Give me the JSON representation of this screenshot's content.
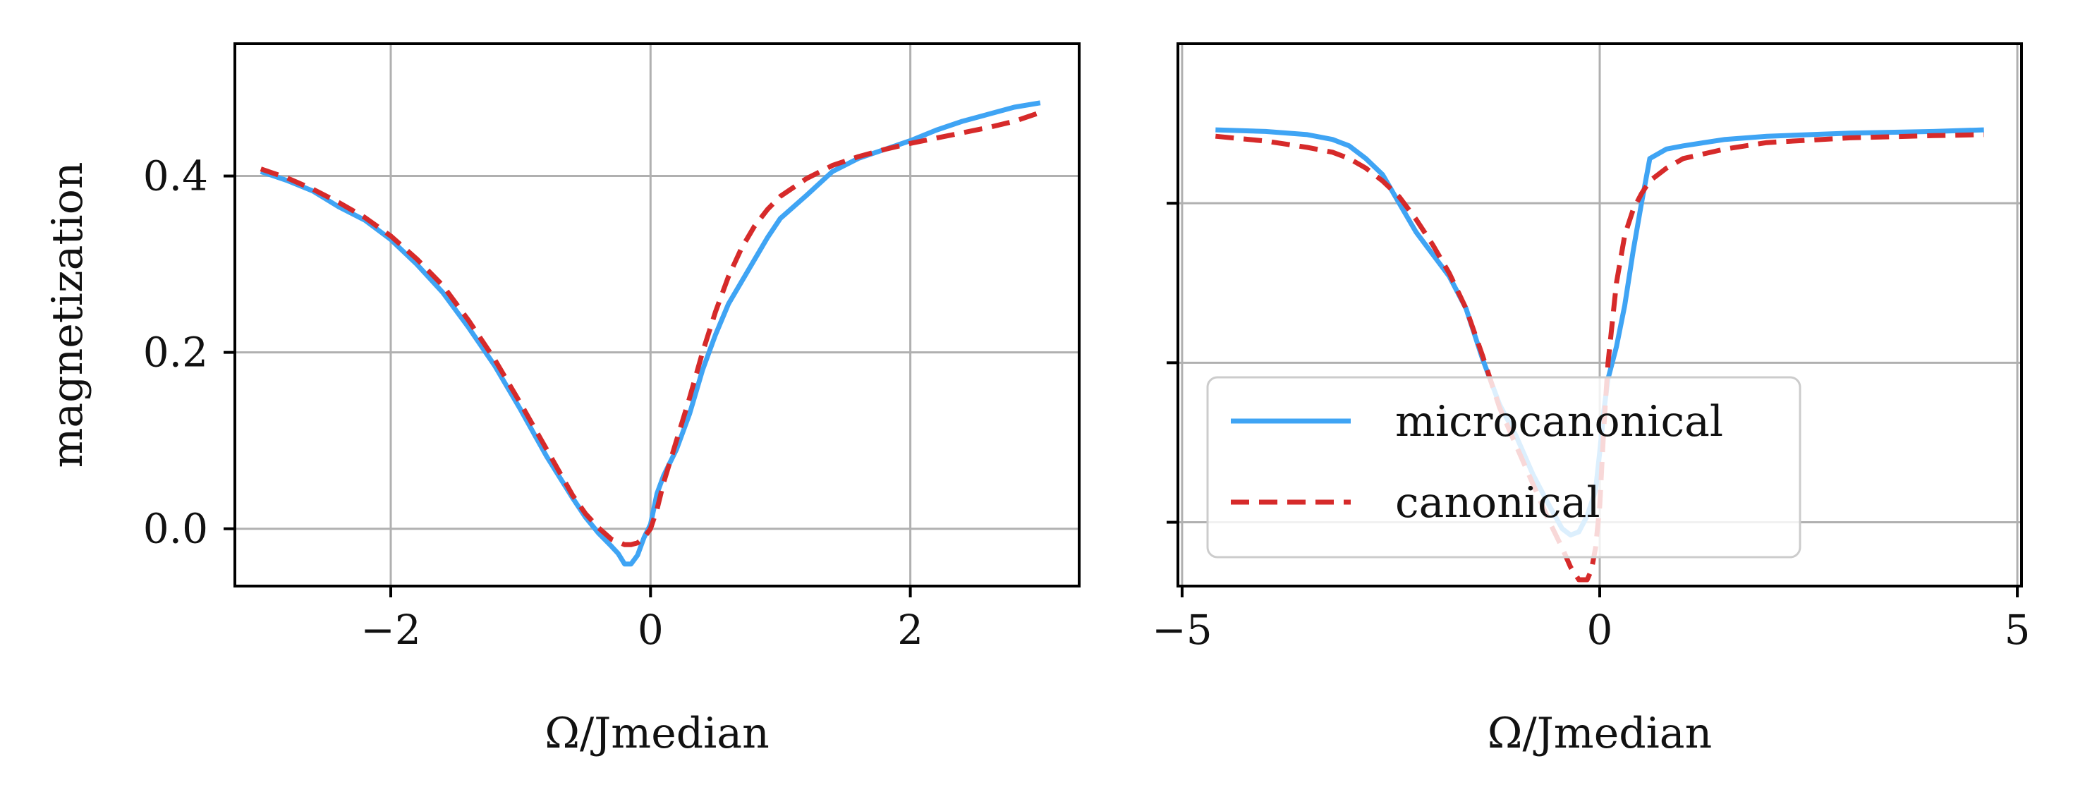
{
  "colors": {
    "micro": "#3fa4f4",
    "canon": "#d62a2a",
    "grid": "#b0b0b0",
    "axis": "#000000"
  },
  "chart_data": [
    {
      "type": "line",
      "id": "left",
      "title": "",
      "xlabel": "Ω/Jmedian",
      "ylabel": "magnetization",
      "xlim": [
        -3.2,
        3.3
      ],
      "ylim": [
        -0.065,
        0.55
      ],
      "xticks": [
        -2,
        0,
        2
      ],
      "xtick_labels": [
        "−2",
        "0",
        "2"
      ],
      "yticks": [
        0.0,
        0.2,
        0.4
      ],
      "ytick_labels": [
        "0.0",
        "0.2",
        "0.4"
      ],
      "grid": true,
      "series": [
        {
          "name": "microcanonical",
          "style": "solid",
          "x": [
            -3.0,
            -2.8,
            -2.6,
            -2.4,
            -2.2,
            -2.0,
            -1.8,
            -1.6,
            -1.4,
            -1.2,
            -1.0,
            -0.8,
            -0.6,
            -0.5,
            -0.4,
            -0.3,
            -0.25,
            -0.2,
            -0.15,
            -0.1,
            -0.05,
            0.0,
            0.05,
            0.1,
            0.2,
            0.3,
            0.4,
            0.5,
            0.6,
            0.7,
            0.8,
            0.9,
            1.0,
            1.2,
            1.4,
            1.6,
            1.8,
            2.0,
            2.2,
            2.4,
            2.6,
            2.8,
            3.0
          ],
          "y": [
            0.405,
            0.395,
            0.383,
            0.365,
            0.35,
            0.328,
            0.3,
            0.268,
            0.228,
            0.185,
            0.135,
            0.082,
            0.035,
            0.013,
            -0.005,
            -0.02,
            -0.028,
            -0.04,
            -0.04,
            -0.03,
            -0.01,
            0.005,
            0.04,
            0.06,
            0.09,
            0.13,
            0.18,
            0.22,
            0.255,
            0.28,
            0.305,
            0.33,
            0.352,
            0.378,
            0.405,
            0.42,
            0.43,
            0.44,
            0.452,
            0.462,
            0.47,
            0.478,
            0.483
          ]
        },
        {
          "name": "canonical",
          "style": "dashed",
          "x": [
            -3.0,
            -2.8,
            -2.6,
            -2.4,
            -2.2,
            -2.0,
            -1.8,
            -1.6,
            -1.4,
            -1.2,
            -1.0,
            -0.8,
            -0.6,
            -0.5,
            -0.4,
            -0.3,
            -0.2,
            -0.15,
            -0.1,
            -0.05,
            0.0,
            0.05,
            0.1,
            0.2,
            0.3,
            0.4,
            0.5,
            0.6,
            0.7,
            0.8,
            0.9,
            1.0,
            1.2,
            1.4,
            1.6,
            1.8,
            2.0,
            2.2,
            2.4,
            2.6,
            2.8,
            3.0
          ],
          "y": [
            0.408,
            0.398,
            0.385,
            0.37,
            0.353,
            0.332,
            0.306,
            0.276,
            0.236,
            0.192,
            0.142,
            0.09,
            0.038,
            0.017,
            0.001,
            -0.012,
            -0.018,
            -0.018,
            -0.016,
            -0.01,
            0.0,
            0.022,
            0.052,
            0.1,
            0.148,
            0.2,
            0.246,
            0.286,
            0.318,
            0.343,
            0.362,
            0.377,
            0.397,
            0.412,
            0.422,
            0.43,
            0.437,
            0.443,
            0.449,
            0.455,
            0.462,
            0.472
          ]
        }
      ]
    },
    {
      "type": "line",
      "id": "right",
      "title": "",
      "xlabel": "Ω/Jmedian",
      "ylabel": "",
      "xlim": [
        -5.05,
        5.05
      ],
      "ylim": [
        -0.6,
        1.1
      ],
      "xticks": [
        -5,
        0,
        5
      ],
      "xtick_labels": [
        "−5",
        "0",
        "5"
      ],
      "yticks": [
        -0.4,
        0.1,
        0.6
      ],
      "ytick_labels": [
        "",
        "",
        ""
      ],
      "grid": true,
      "legend": {
        "position": "lower-left",
        "entries": [
          "microcanonical",
          "canonical"
        ]
      },
      "series": [
        {
          "name": "microcanonical",
          "style": "solid",
          "x": [
            -4.6,
            -4.0,
            -3.5,
            -3.2,
            -3.0,
            -2.8,
            -2.6,
            -2.4,
            -2.2,
            -2.0,
            -1.8,
            -1.6,
            -1.4,
            -1.2,
            -1.0,
            -0.8,
            -0.6,
            -0.45,
            -0.35,
            -0.25,
            -0.15,
            -0.05,
            0.0,
            0.05,
            0.1,
            0.2,
            0.3,
            0.4,
            0.5,
            0.6,
            0.8,
            1.0,
            1.5,
            2.0,
            3.0,
            4.0,
            4.6
          ],
          "y": [
            0.83,
            0.825,
            0.815,
            0.8,
            0.78,
            0.74,
            0.69,
            0.6,
            0.51,
            0.44,
            0.37,
            0.27,
            0.11,
            -0.03,
            -0.13,
            -0.25,
            -0.35,
            -0.42,
            -0.44,
            -0.43,
            -0.38,
            -0.3,
            -0.18,
            -0.05,
            0.05,
            0.15,
            0.28,
            0.45,
            0.6,
            0.74,
            0.77,
            0.78,
            0.8,
            0.81,
            0.82,
            0.825,
            0.83
          ]
        },
        {
          "name": "canonical",
          "style": "dashed",
          "x": [
            -4.6,
            -4.0,
            -3.5,
            -3.2,
            -3.0,
            -2.8,
            -2.6,
            -2.4,
            -2.2,
            -2.0,
            -1.8,
            -1.6,
            -1.4,
            -1.2,
            -1.0,
            -0.8,
            -0.6,
            -0.45,
            -0.35,
            -0.25,
            -0.15,
            -0.1,
            -0.05,
            0.0,
            0.05,
            0.1,
            0.2,
            0.3,
            0.4,
            0.5,
            0.6,
            0.8,
            1.0,
            1.5,
            2.0,
            3.0,
            4.0,
            4.6
          ],
          "y": [
            0.81,
            0.795,
            0.775,
            0.76,
            0.74,
            0.71,
            0.67,
            0.62,
            0.55,
            0.47,
            0.38,
            0.27,
            0.12,
            -0.04,
            -0.16,
            -0.28,
            -0.4,
            -0.48,
            -0.54,
            -0.58,
            -0.58,
            -0.55,
            -0.48,
            -0.35,
            -0.1,
            0.1,
            0.35,
            0.5,
            0.58,
            0.63,
            0.67,
            0.71,
            0.74,
            0.77,
            0.79,
            0.805,
            0.812,
            0.815
          ]
        }
      ]
    }
  ]
}
